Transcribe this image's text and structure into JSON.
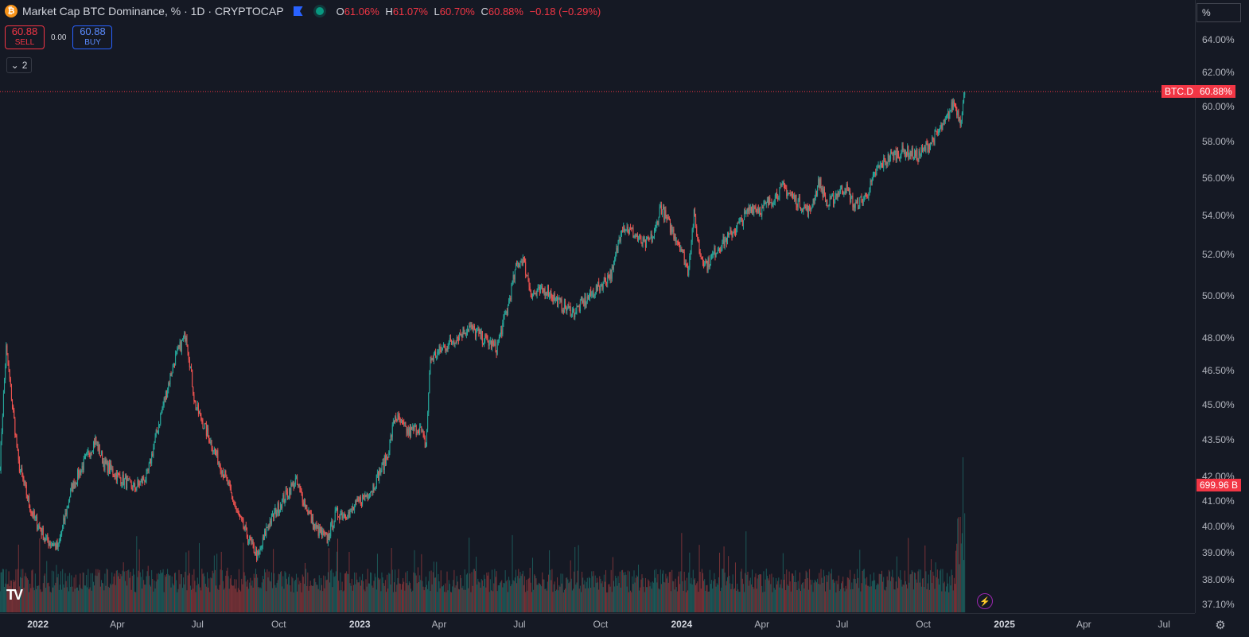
{
  "header": {
    "coin_icon": "bitcoin-icon",
    "title": "Market Cap BTC Dominance, % · 1D · CRYPTOCAP",
    "ohlc": {
      "o_label": "O",
      "o_value": "61.06%",
      "h_label": "H",
      "h_value": "61.07%",
      "l_label": "L",
      "l_value": "60.70%",
      "c_label": "C",
      "c_value": "60.88%",
      "change": "−0.18 (−0.29%)"
    }
  },
  "trade": {
    "sell_price": "60.88",
    "sell_label": "SELL",
    "spread": "0.00",
    "buy_price": "60.88",
    "buy_label": "BUY"
  },
  "indicators_toggle": {
    "count": "2"
  },
  "scale_button": "%",
  "last_price_tag": {
    "symbol": "BTC.D",
    "value": "60.88%"
  },
  "volume_tag": "699.96 B",
  "colors": {
    "up": "#26a69a",
    "down": "#ef5350",
    "tag": "#f23645",
    "background": "#151924"
  },
  "chart_data": {
    "type": "candlestick",
    "title": "Market Cap BTC Dominance, % · 1D · CRYPTOCAP",
    "y_scale": "log",
    "y_ticks": [
      "64.00%",
      "62.00%",
      "60.00%",
      "58.00%",
      "56.00%",
      "54.00%",
      "52.00%",
      "50.00%",
      "48.00%",
      "46.50%",
      "45.00%",
      "43.50%",
      "42.00%",
      "41.00%",
      "40.00%",
      "39.00%",
      "38.00%",
      "37.10%"
    ],
    "x_ticks": [
      "2022",
      "Apr",
      "Jul",
      "Oct",
      "2023",
      "Apr",
      "Jul",
      "Oct",
      "2024",
      "Apr",
      "Jul",
      "Oct",
      "2025",
      "Apr",
      "Jul"
    ],
    "x_range": [
      "2021-11-19",
      "2025-08-05"
    ],
    "y_range": [
      37.1,
      65.5
    ],
    "grid": false,
    "series": [
      {
        "values_key": "close_anchors",
        "points": [
          [
            "2021-11-19",
            42.5
          ],
          [
            "2021-11-26",
            47.5
          ],
          [
            "2021-12-10",
            42.5
          ],
          [
            "2021-12-25",
            40.5
          ],
          [
            "2022-01-10",
            39.5
          ],
          [
            "2022-01-24",
            39.2
          ],
          [
            "2022-02-08",
            41.5
          ],
          [
            "2022-02-22",
            42.5
          ],
          [
            "2022-03-07",
            43.5
          ],
          [
            "2022-03-17",
            42.5
          ],
          [
            "2022-04-01",
            42.0
          ],
          [
            "2022-04-20",
            41.5
          ],
          [
            "2022-05-05",
            42.0
          ],
          [
            "2022-05-20",
            44.5
          ],
          [
            "2022-06-05",
            47.0
          ],
          [
            "2022-06-18",
            48.2
          ],
          [
            "2022-06-28",
            45.0
          ],
          [
            "2022-07-15",
            43.5
          ],
          [
            "2022-08-01",
            42.0
          ],
          [
            "2022-08-15",
            40.5
          ],
          [
            "2022-08-28",
            39.5
          ],
          [
            "2022-09-08",
            38.8
          ],
          [
            "2022-09-18",
            40.0
          ],
          [
            "2022-10-05",
            41.0
          ],
          [
            "2022-10-20",
            41.8
          ],
          [
            "2022-11-01",
            40.8
          ],
          [
            "2022-11-10",
            40.0
          ],
          [
            "2022-11-25",
            39.5
          ],
          [
            "2022-12-05",
            40.5
          ],
          [
            "2022-12-20",
            40.5
          ],
          [
            "2023-01-01",
            41.0
          ],
          [
            "2023-01-15",
            41.5
          ],
          [
            "2023-02-01",
            42.8
          ],
          [
            "2023-02-10",
            44.5
          ],
          [
            "2023-02-25",
            43.8
          ],
          [
            "2023-03-10",
            44.0
          ],
          [
            "2023-03-17",
            43.2
          ],
          [
            "2023-03-22",
            47.0
          ],
          [
            "2023-04-05",
            47.5
          ],
          [
            "2023-04-20",
            48.0
          ],
          [
            "2023-05-05",
            48.5
          ],
          [
            "2023-05-20",
            48.0
          ],
          [
            "2023-06-05",
            47.5
          ],
          [
            "2023-06-18",
            49.5
          ],
          [
            "2023-06-28",
            51.5
          ],
          [
            "2023-07-05",
            51.8
          ],
          [
            "2023-07-15",
            50.0
          ],
          [
            "2023-08-01",
            50.3
          ],
          [
            "2023-08-18",
            49.5
          ],
          [
            "2023-09-01",
            49.2
          ],
          [
            "2023-09-15",
            49.8
          ],
          [
            "2023-10-01",
            50.5
          ],
          [
            "2023-10-15",
            51.2
          ],
          [
            "2023-10-25",
            53.5
          ],
          [
            "2023-11-05",
            53.2
          ],
          [
            "2023-11-20",
            52.5
          ],
          [
            "2023-12-01",
            53.0
          ],
          [
            "2023-12-08",
            54.5
          ],
          [
            "2023-12-18",
            53.5
          ],
          [
            "2023-12-30",
            52.5
          ],
          [
            "2024-01-08",
            51.2
          ],
          [
            "2024-01-15",
            54.0
          ],
          [
            "2024-01-22",
            52.0
          ],
          [
            "2024-01-30",
            51.5
          ],
          [
            "2024-02-10",
            52.3
          ],
          [
            "2024-02-25",
            53.0
          ],
          [
            "2024-03-10",
            53.8
          ],
          [
            "2024-03-20",
            54.5
          ],
          [
            "2024-04-01",
            54.3
          ],
          [
            "2024-04-15",
            55.0
          ],
          [
            "2024-04-25",
            55.5
          ],
          [
            "2024-05-10",
            54.8
          ],
          [
            "2024-05-25",
            54.2
          ],
          [
            "2024-06-05",
            55.8
          ],
          [
            "2024-06-15",
            54.5
          ],
          [
            "2024-06-25",
            55.2
          ],
          [
            "2024-07-05",
            55.5
          ],
          [
            "2024-07-15",
            54.5
          ],
          [
            "2024-07-28",
            55.0
          ],
          [
            "2024-08-10",
            56.5
          ],
          [
            "2024-08-25",
            57.2
          ],
          [
            "2024-09-10",
            57.5
          ],
          [
            "2024-09-25",
            57.2
          ],
          [
            "2024-10-10",
            58.0
          ],
          [
            "2024-10-25",
            59.0
          ],
          [
            "2024-11-05",
            60.3
          ],
          [
            "2024-11-12",
            59.2
          ],
          [
            "2024-11-17",
            60.88
          ]
        ]
      }
    ],
    "volume": {
      "unit": "B",
      "last": 699.96
    },
    "last_close": 60.88
  }
}
